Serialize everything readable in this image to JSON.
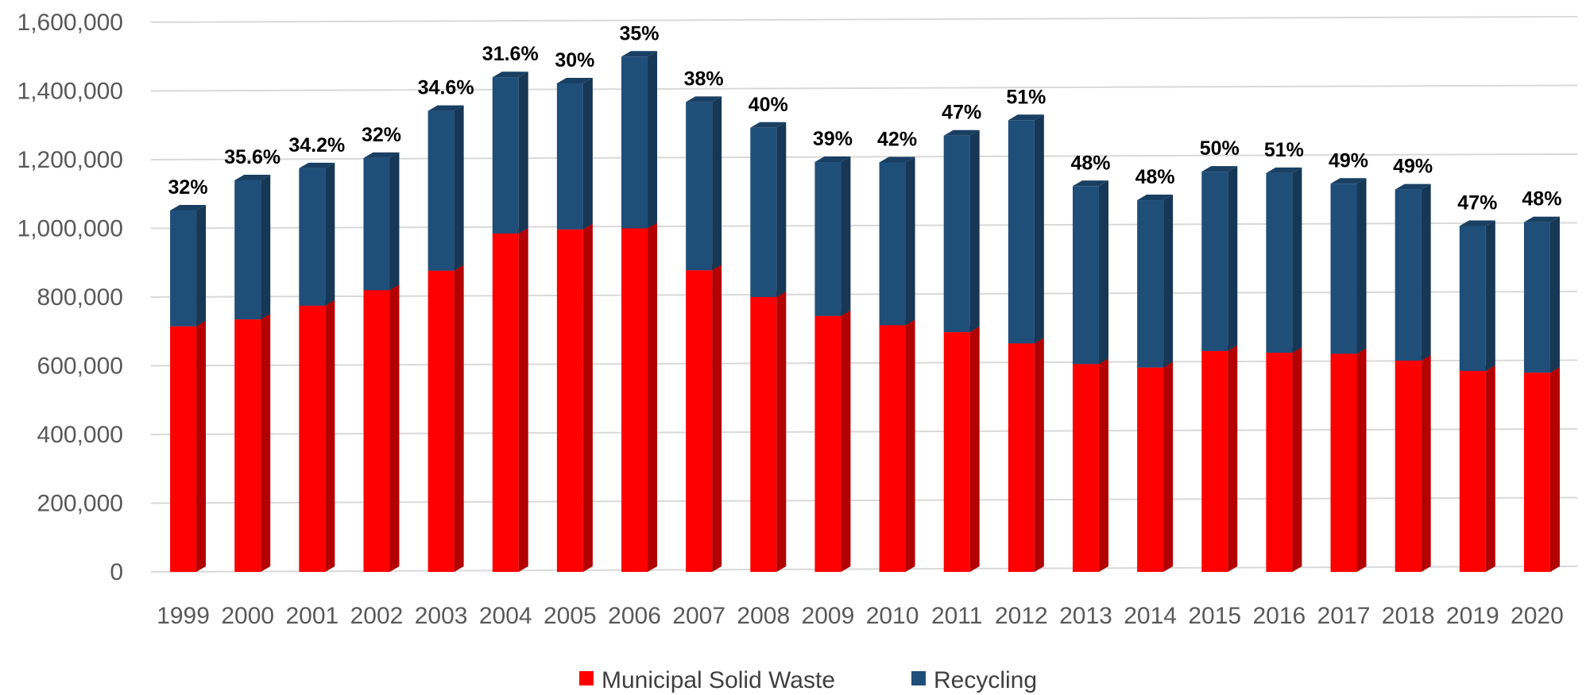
{
  "chart_data": {
    "type": "bar",
    "stacked": true,
    "categories": [
      "1999",
      "2000",
      "2001",
      "2002",
      "2003",
      "2004",
      "2005",
      "2006",
      "2007",
      "2008",
      "2009",
      "2010",
      "2011",
      "2012",
      "2013",
      "2014",
      "2015",
      "2016",
      "2017",
      "2018",
      "2019",
      "2020"
    ],
    "series": [
      {
        "name": "Municipal Solid Waste",
        "color": "#ff0000",
        "values": [
          715000,
          735000,
          775000,
          820000,
          877000,
          985000,
          997000,
          1000000,
          878000,
          800000,
          745000,
          718000,
          698000,
          665000,
          605000,
          595000,
          643000,
          638000,
          635000,
          615000,
          585000,
          580000
        ]
      },
      {
        "name": "Recycling",
        "color": "#1f4e79",
        "values": [
          337000,
          405000,
          400000,
          385000,
          465000,
          455000,
          425000,
          500000,
          490000,
          493000,
          448000,
          474000,
          572000,
          650000,
          518000,
          487000,
          522000,
          523000,
          495000,
          498000,
          422000,
          438000
        ]
      }
    ],
    "labels": [
      "32%",
      "35.6%",
      "34.2%",
      "32%",
      "34.6%",
      "31.6%",
      "30%",
      "35%",
      "38%",
      "40%",
      "39%",
      "42%",
      "47%",
      "51%",
      "48%",
      "48%",
      "50%",
      "51%",
      "49%",
      "49%",
      "47%",
      "48%"
    ],
    "y_ticks": [
      "0",
      "200,000",
      "400,000",
      "600,000",
      "800,000",
      "1,000,000",
      "1,200,000",
      "1,400,000",
      "1,600,000"
    ],
    "ylim": [
      0,
      1600000
    ],
    "grid": true,
    "legend": "bottom",
    "title": "",
    "xlabel": "",
    "ylabel": ""
  }
}
